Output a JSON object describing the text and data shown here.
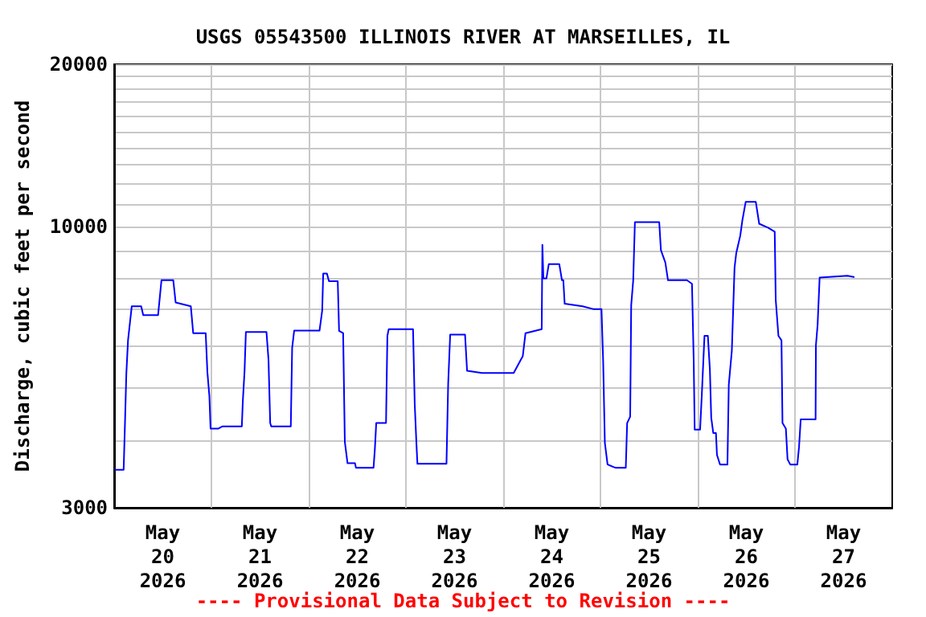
{
  "chart_data": {
    "type": "line",
    "title": "USGS 05543500 ILLINOIS RIVER AT MARSEILLES, IL",
    "ylabel": "Discharge, cubic feet per second",
    "annotations": [
      "---- Provisional Data Subject to Revision ----"
    ],
    "log": true,
    "grid": true,
    "marker": "none",
    "line_style": "solid",
    "xlim": [
      "2026-05-20",
      "2026-05-28"
    ],
    "xticks": [
      {
        "value": "2026-05-20T12:00",
        "label": "May\n20\n2026"
      },
      {
        "value": "2026-05-21T12:00",
        "label": "May\n21\n2026"
      },
      {
        "value": "2026-05-22T12:00",
        "label": "May\n22\n2026"
      },
      {
        "value": "2026-05-23T12:00",
        "label": "May\n23\n2026"
      },
      {
        "value": "2026-05-24T12:00",
        "label": "May\n24\n2026"
      },
      {
        "value": "2026-05-25T12:00",
        "label": "May\n25\n2026"
      },
      {
        "value": "2026-05-26T12:00",
        "label": "May\n26\n2026"
      },
      {
        "value": "2026-05-27T12:00",
        "label": "May\n27\n2026"
      },
      {
        "value": "2026-05-21",
        "label": null
      },
      {
        "value": "2026-05-22",
        "label": null
      },
      {
        "value": "2026-05-23",
        "label": null
      },
      {
        "value": "2026-05-24",
        "label": null
      },
      {
        "value": "2026-05-25",
        "label": null
      },
      {
        "value": "2026-05-26",
        "label": null
      },
      {
        "value": "2026-05-27",
        "label": null
      }
    ],
    "ylim": [
      3000,
      20000
    ],
    "yticks": [
      3000,
      {
        "value": 4000,
        "label": null
      },
      {
        "value": 5000,
        "label": null
      },
      {
        "value": 6000,
        "label": null
      },
      {
        "value": 7000,
        "label": null
      },
      {
        "value": 8000,
        "label": null
      },
      {
        "value": 9000,
        "label": null
      },
      10000,
      {
        "value": 11000,
        "label": null
      },
      {
        "value": 12000,
        "label": null
      },
      {
        "value": 13000,
        "label": null
      },
      {
        "value": 14000,
        "label": null
      },
      {
        "value": 15000,
        "label": null
      },
      {
        "value": 16000,
        "label": null
      },
      {
        "value": 17000,
        "label": null
      },
      {
        "value": 18000,
        "label": null
      },
      {
        "value": 19000,
        "label": null
      },
      20000
    ],
    "series": [
      {
        "color": "#0000ff",
        "x": [
          "2026-05-20T00:15",
          "2026-05-20T02:20",
          "2026-05-20T02:40",
          "2026-05-20T03:00",
          "2026-05-20T03:25",
          "2026-05-20T04:20",
          "2026-05-20T06:40",
          "2026-05-20T07:10",
          "2026-05-20T10:50",
          "2026-05-20T11:40",
          "2026-05-20T14:35",
          "2026-05-20T15:10",
          "2026-05-20T18:55",
          "2026-05-20T19:30",
          "2026-05-20T22:35",
          "2026-05-20T23:00",
          "2026-05-20T23:30",
          "2026-05-20T23:47",
          "2026-05-21T01:45",
          "2026-05-21T02:45",
          "2026-05-21T07:30",
          "2026-05-21T07:45",
          "2026-05-21T08:10",
          "2026-05-21T08:30",
          "2026-05-21T13:35",
          "2026-05-21T14:05",
          "2026-05-21T14:30",
          "2026-05-21T14:45",
          "2026-05-21T19:35",
          "2026-05-21T19:55",
          "2026-05-21T20:25",
          "2026-05-22T02:40",
          "2026-05-22T03:20",
          "2026-05-22T03:35",
          "2026-05-22T04:30",
          "2026-05-22T05:00",
          "2026-05-22T07:10",
          "2026-05-22T07:30",
          "2026-05-22T08:30",
          "2026-05-22T08:55",
          "2026-05-22T09:35",
          "2026-05-22T11:25",
          "2026-05-22T11:40",
          "2026-05-22T16:00",
          "2026-05-22T16:20",
          "2026-05-22T16:40",
          "2026-05-22T19:05",
          "2026-05-22T19:25",
          "2026-05-22T19:45",
          "2026-05-23T01:45",
          "2026-05-23T02:10",
          "2026-05-23T02:35",
          "2026-05-23T02:50",
          "2026-05-23T10:00",
          "2026-05-23T10:25",
          "2026-05-23T10:55",
          "2026-05-23T14:35",
          "2026-05-23T15:05",
          "2026-05-23T18:45",
          "2026-05-24T00:00",
          "2026-05-24T02:35",
          "2026-05-24T04:50",
          "2026-05-24T05:30",
          "2026-05-24T09:30",
          "2026-05-24T09:40",
          "2026-05-24T09:55",
          "2026-05-24T10:40",
          "2026-05-24T11:15",
          "2026-05-24T13:50",
          "2026-05-24T14:30",
          "2026-05-24T14:50",
          "2026-05-24T15:10",
          "2026-05-24T19:35",
          "2026-05-24T22:10",
          "2026-05-25T00:15",
          "2026-05-25T00:40",
          "2026-05-25T01:05",
          "2026-05-25T01:45",
          "2026-05-25T03:40",
          "2026-05-25T06:15",
          "2026-05-25T06:35",
          "2026-05-25T07:20",
          "2026-05-25T07:35",
          "2026-05-25T08:05",
          "2026-05-25T08:30",
          "2026-05-25T14:30",
          "2026-05-25T14:55",
          "2026-05-25T16:00",
          "2026-05-25T16:40",
          "2026-05-25T21:20",
          "2026-05-25T22:35",
          "2026-05-25T23:00",
          "2026-05-25T23:15",
          "2026-05-26T00:35",
          "2026-05-26T01:00",
          "2026-05-26T01:40",
          "2026-05-26T02:30",
          "2026-05-26T03:00",
          "2026-05-26T03:20",
          "2026-05-26T03:50",
          "2026-05-26T04:30",
          "2026-05-26T04:45",
          "2026-05-26T05:30",
          "2026-05-26T07:20",
          "2026-05-26T07:40",
          "2026-05-26T08:25",
          "2026-05-26T09:05",
          "2026-05-26T09:30",
          "2026-05-26T10:30",
          "2026-05-26T11:00",
          "2026-05-26T11:50",
          "2026-05-26T14:20",
          "2026-05-26T15:10",
          "2026-05-26T17:20",
          "2026-05-26T19:00",
          "2026-05-26T19:15",
          "2026-05-26T19:55",
          "2026-05-26T20:40",
          "2026-05-26T20:55",
          "2026-05-26T21:45",
          "2026-05-26T22:10",
          "2026-05-26T22:50",
          "2026-05-27T00:35",
          "2026-05-27T01:00",
          "2026-05-27T01:25",
          "2026-05-27T05:05",
          "2026-05-27T05:10",
          "2026-05-27T05:35",
          "2026-05-27T06:05",
          "2026-05-27T12:55",
          "2026-05-27T14:30"
        ],
        "values": [
          3530,
          3530,
          4310,
          5320,
          6140,
          7100,
          7100,
          6840,
          6840,
          7940,
          7940,
          7220,
          7100,
          6330,
          6330,
          5360,
          4830,
          4210,
          4210,
          4250,
          4250,
          4740,
          5370,
          6360,
          6360,
          5650,
          4310,
          4250,
          4250,
          5940,
          6400,
          6400,
          6970,
          8170,
          8170,
          7910,
          7910,
          6390,
          6330,
          3980,
          3630,
          3630,
          3560,
          3560,
          3860,
          4310,
          4310,
          6260,
          6440,
          6440,
          4670,
          3950,
          3620,
          3620,
          5090,
          6290,
          6290,
          5390,
          5340,
          5340,
          5340,
          5740,
          6330,
          6440,
          9240,
          8000,
          8000,
          8510,
          8510,
          7940,
          7940,
          7180,
          7100,
          7020,
          7020,
          5610,
          3960,
          3610,
          3560,
          3560,
          4310,
          4430,
          7130,
          7940,
          10180,
          10180,
          9030,
          8570,
          7940,
          7940,
          7820,
          5670,
          4190,
          4190,
          4850,
          6260,
          6260,
          5420,
          4410,
          4130,
          4130,
          3760,
          3610,
          3610,
          5080,
          5870,
          8370,
          8910,
          9610,
          10240,
          11100,
          11100,
          10110,
          9940,
          9770,
          7300,
          6260,
          6140,
          4310,
          4210,
          3690,
          3610,
          3610,
          3890,
          4380,
          4380,
          6010,
          6560,
          8030,
          8090,
          8050
        ]
      }
    ]
  }
}
